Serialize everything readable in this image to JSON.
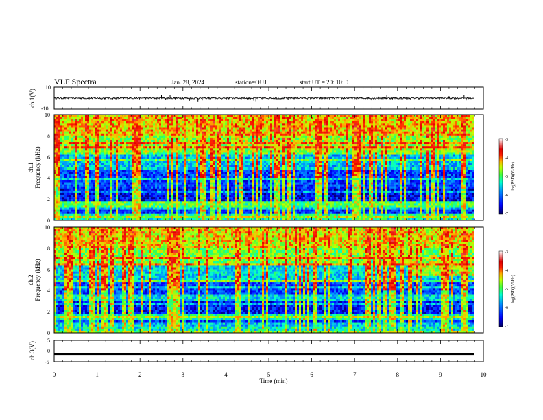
{
  "header": {
    "title": "VLF Spectra",
    "date": "Jan. 28, 2024",
    "station": "station=OUJ",
    "start": "start  UT =   20: 10: 0"
  },
  "colors": {
    "background": "#ffffff",
    "ink": "#000000",
    "colormap": [
      "#00008c",
      "#0000ff",
      "#0070ff",
      "#00d0ff",
      "#30ffb0",
      "#60ff40",
      "#c0ff00",
      "#ffd000",
      "#ff6000",
      "#e00000",
      "#ffffff"
    ]
  },
  "chart_data": [
    {
      "type": "line",
      "name": "ch1-waveform",
      "ylabel": "ch.1(V)",
      "xlim": [
        0,
        10
      ],
      "ylim": [
        -10,
        10
      ],
      "yticks": [
        "10",
        "-10"
      ],
      "series": [
        {
          "baseline": 0,
          "noise_amplitude": 0.8,
          "spikes": [
            [
              2.5,
              2.5
            ],
            [
              2.6,
              -1.5
            ],
            [
              2.7,
              3
            ],
            [
              3.15,
              -2.5
            ],
            [
              3.35,
              -3
            ],
            [
              3.45,
              -2
            ],
            [
              4.65,
              -2.2
            ],
            [
              4.7,
              -2.8
            ],
            [
              5.45,
              -1.8
            ],
            [
              7.4,
              -2
            ],
            [
              7.75,
              2.5
            ],
            [
              9.2,
              1.8
            ],
            [
              9.55,
              3
            ],
            [
              9.6,
              -2
            ]
          ]
        }
      ]
    },
    {
      "type": "heatmap",
      "name": "ch1-spectrogram",
      "ylabel": "ch.1",
      "ylabel2": "Frequency (kHz)",
      "xlim": [
        0,
        9.8
      ],
      "ylim": [
        0,
        10
      ],
      "yticks": [
        "10",
        "8",
        "6",
        "4",
        "2",
        "0"
      ],
      "colorbar": {
        "label": "log(PSD)(V²/Hz)",
        "range": [
          -7,
          -3
        ],
        "ticks": [
          "-3",
          "-4",
          "-5",
          "-6",
          "-7"
        ]
      },
      "bands_log_psd": [
        {
          "f": [
            0,
            0.6
          ],
          "value": -5.3
        },
        {
          "f": [
            0.6,
            1.3
          ],
          "value": -6.3
        },
        {
          "f": [
            1.3,
            1.7
          ],
          "value": -5.0
        },
        {
          "f": [
            1.7,
            3.0
          ],
          "value": -6.5
        },
        {
          "f": [
            3.0,
            5.0
          ],
          "value": -6.2
        },
        {
          "f": [
            5.0,
            6.5
          ],
          "value": -5.6
        },
        {
          "f": [
            6.5,
            8.0
          ],
          "value": -4.7
        },
        {
          "f": [
            8.0,
            10.0
          ],
          "value": -4.3
        }
      ],
      "hiss_band": {
        "f": [
          1.3,
          1.7
        ],
        "t": [
          0,
          2.9
        ],
        "value": -4.9
      },
      "sferics_per_min": 9
    },
    {
      "type": "heatmap",
      "name": "ch2-spectrogram",
      "ylabel": "ch.2",
      "ylabel2": "Frequency (kHz)",
      "xlim": [
        0,
        9.8
      ],
      "ylim": [
        0,
        10
      ],
      "yticks": [
        "10",
        "8",
        "6",
        "4",
        "2",
        "0"
      ],
      "colorbar": {
        "label": "log(PSD)(V²/Hz)",
        "range": [
          -7,
          -3
        ],
        "ticks": [
          "-3",
          "-4",
          "-5",
          "-6",
          "-7"
        ]
      },
      "bands_log_psd": [
        {
          "f": [
            0,
            0.6
          ],
          "value": -5.4
        },
        {
          "f": [
            0.6,
            1.3
          ],
          "value": -6.3
        },
        {
          "f": [
            1.3,
            1.7
          ],
          "value": -5.3
        },
        {
          "f": [
            1.7,
            3.0
          ],
          "value": -6.4
        },
        {
          "f": [
            3.0,
            4.8
          ],
          "value": -6.2
        },
        {
          "f": [
            4.8,
            6.5
          ],
          "value": -5.5
        },
        {
          "f": [
            6.5,
            8.0
          ],
          "value": -4.8
        },
        {
          "f": [
            8.0,
            10.0
          ],
          "value": -4.4
        }
      ],
      "hiss_band": {
        "f": [
          5.5,
          6.8
        ],
        "t": [
          8.3,
          9.8
        ],
        "value": -4.6
      },
      "sferics_per_min": 9
    },
    {
      "type": "line",
      "name": "ch3-waveform",
      "ylabel": "ch.3(V)",
      "xlabel": "Time (min)",
      "xlim": [
        0,
        10
      ],
      "ylim": [
        -5,
        5
      ],
      "yticks": [
        "5",
        "0",
        "-5"
      ],
      "xticks": [
        "0",
        "1",
        "2",
        "3",
        "4",
        "5",
        "6",
        "7",
        "8",
        "9",
        "10"
      ],
      "series": [
        {
          "baseline": -1.5,
          "noise_amplitude": 0.1
        }
      ]
    }
  ]
}
